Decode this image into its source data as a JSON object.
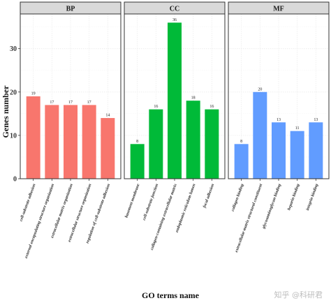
{
  "chart_data": {
    "type": "bar",
    "xlabel": "GO terms name",
    "ylabel": "Genes number",
    "ylim": [
      0,
      38
    ],
    "yticks": [
      0,
      10,
      20,
      30
    ],
    "grid": true,
    "panels": [
      {
        "name": "BP",
        "color": "#F8766D",
        "categories": [
          "cell-substrate adhesion",
          "external encapsulating structure organization",
          "extracellular matrix organization",
          "extracellular structure organization",
          "regulation of cell-substrate adhesion"
        ],
        "values": [
          19,
          17,
          17,
          17,
          14
        ]
      },
      {
        "name": "CC",
        "color": "#00BA38",
        "categories": [
          "basement membrane",
          "cell-substrate junction",
          "collagen-containing extracellular matrix",
          "endoplasmic reticulum lumen",
          "focal adhesion"
        ],
        "values": [
          8,
          16,
          36,
          18,
          16
        ]
      },
      {
        "name": "MF",
        "color": "#619CFF",
        "categories": [
          "collagen binding",
          "extracellular matrix structural constituent",
          "glycosaminoglycan binding",
          "heparin binding",
          "integrin binding"
        ],
        "values": [
          8,
          20,
          13,
          11,
          13
        ]
      }
    ]
  },
  "watermark": "知乎 @科研君"
}
